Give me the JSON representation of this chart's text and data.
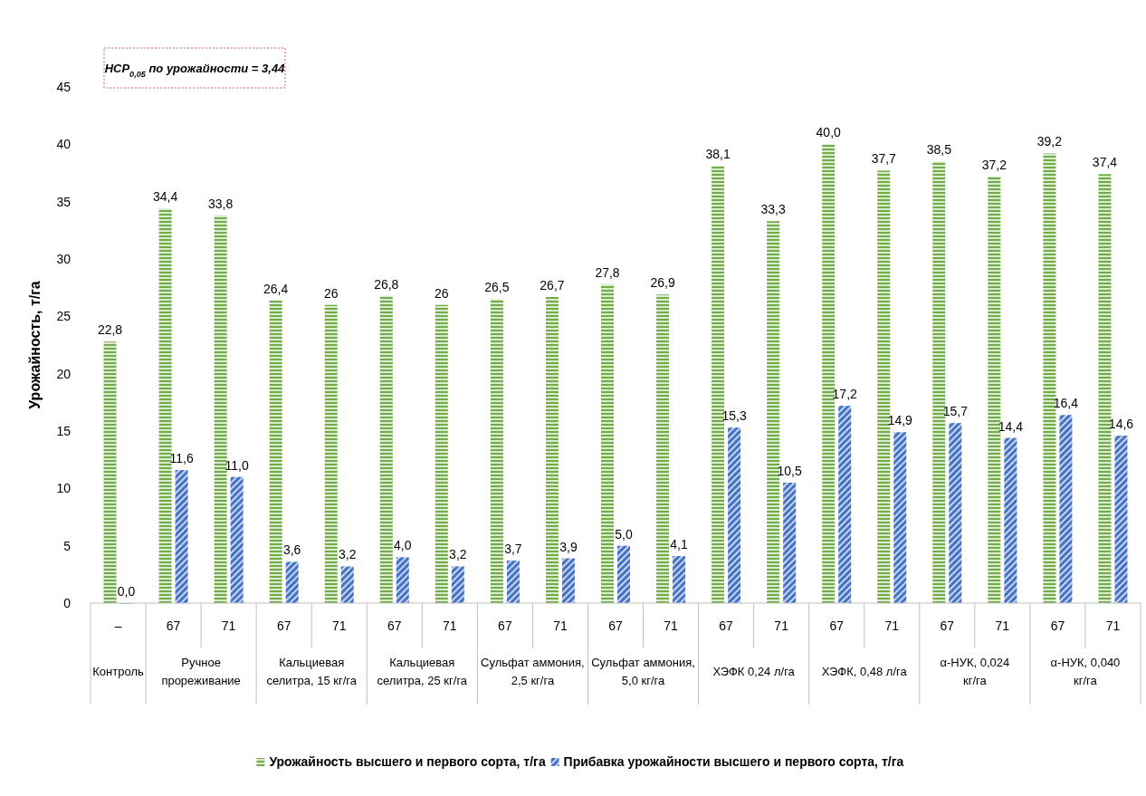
{
  "chart_data": {
    "type": "bar",
    "ylabel": "Урожайность, т/га",
    "ylim": [
      0,
      45
    ],
    "yticks": [
      0,
      5,
      10,
      15,
      20,
      25,
      30,
      35,
      40,
      45
    ],
    "legend": "bottom",
    "categories": [
      "–",
      "67",
      "71",
      "67",
      "71",
      "67",
      "71",
      "67",
      "71",
      "67",
      "71",
      "67",
      "71",
      "67",
      "71",
      "67",
      "71",
      "67",
      "71"
    ],
    "series": [
      {
        "name": "Урожайность высшего и первого сорта, т/га",
        "color": "#70ad47",
        "values": [
          22.8,
          34.4,
          33.8,
          26.4,
          26,
          26.8,
          26,
          26.5,
          26.7,
          27.8,
          26.9,
          38.1,
          33.3,
          40.0,
          37.7,
          38.5,
          37.2,
          39.2,
          37.4
        ],
        "value_labels": [
          "22,8",
          "34,4",
          "33,8",
          "26,4",
          "26",
          "26,8",
          "26",
          "26,5",
          "26,7",
          "27,8",
          "26,9",
          "38,1",
          "33,3",
          "40,0",
          "37,7",
          "38,5",
          "37,2",
          "39,2",
          "37,4"
        ]
      },
      {
        "name": "Прибавка урожайности высшего и первого сорта, т/га",
        "color": "#4472c4",
        "values": [
          0.0,
          11.6,
          11.0,
          3.6,
          3.2,
          4.0,
          3.2,
          3.7,
          3.9,
          5.0,
          4.1,
          15.3,
          10.5,
          17.2,
          14.9,
          15.7,
          14.4,
          16.4,
          14.6
        ],
        "value_labels": [
          "0,0",
          "11,6",
          "11,0",
          "3,6",
          "3,2",
          "4,0",
          "3,2",
          "3,7",
          "3,9",
          "5,0",
          "4,1",
          "15,3",
          "10,5",
          "17,2",
          "14,9",
          "15,7",
          "14,4",
          "16,4",
          "14,6"
        ]
      }
    ],
    "annotations": [
      "НСР$_{0,05}$ по урожайности = 3,44",
      "Контроль",
      "Ручное прореживание",
      "Кальциевая селитра, 15 кг/га",
      "Кальциевая селитра, 25 кг/га",
      "Сульфат аммония, 2,5 кг/га",
      "Сульфат аммония, 5,0 кг/га",
      "ХЭФК 0,24 л/га",
      "ХЭФК, 0,48 л/га",
      "α-НУК, 0,024 кг/га",
      "α-НУК, 0,040 кг/га"
    ]
  }
}
